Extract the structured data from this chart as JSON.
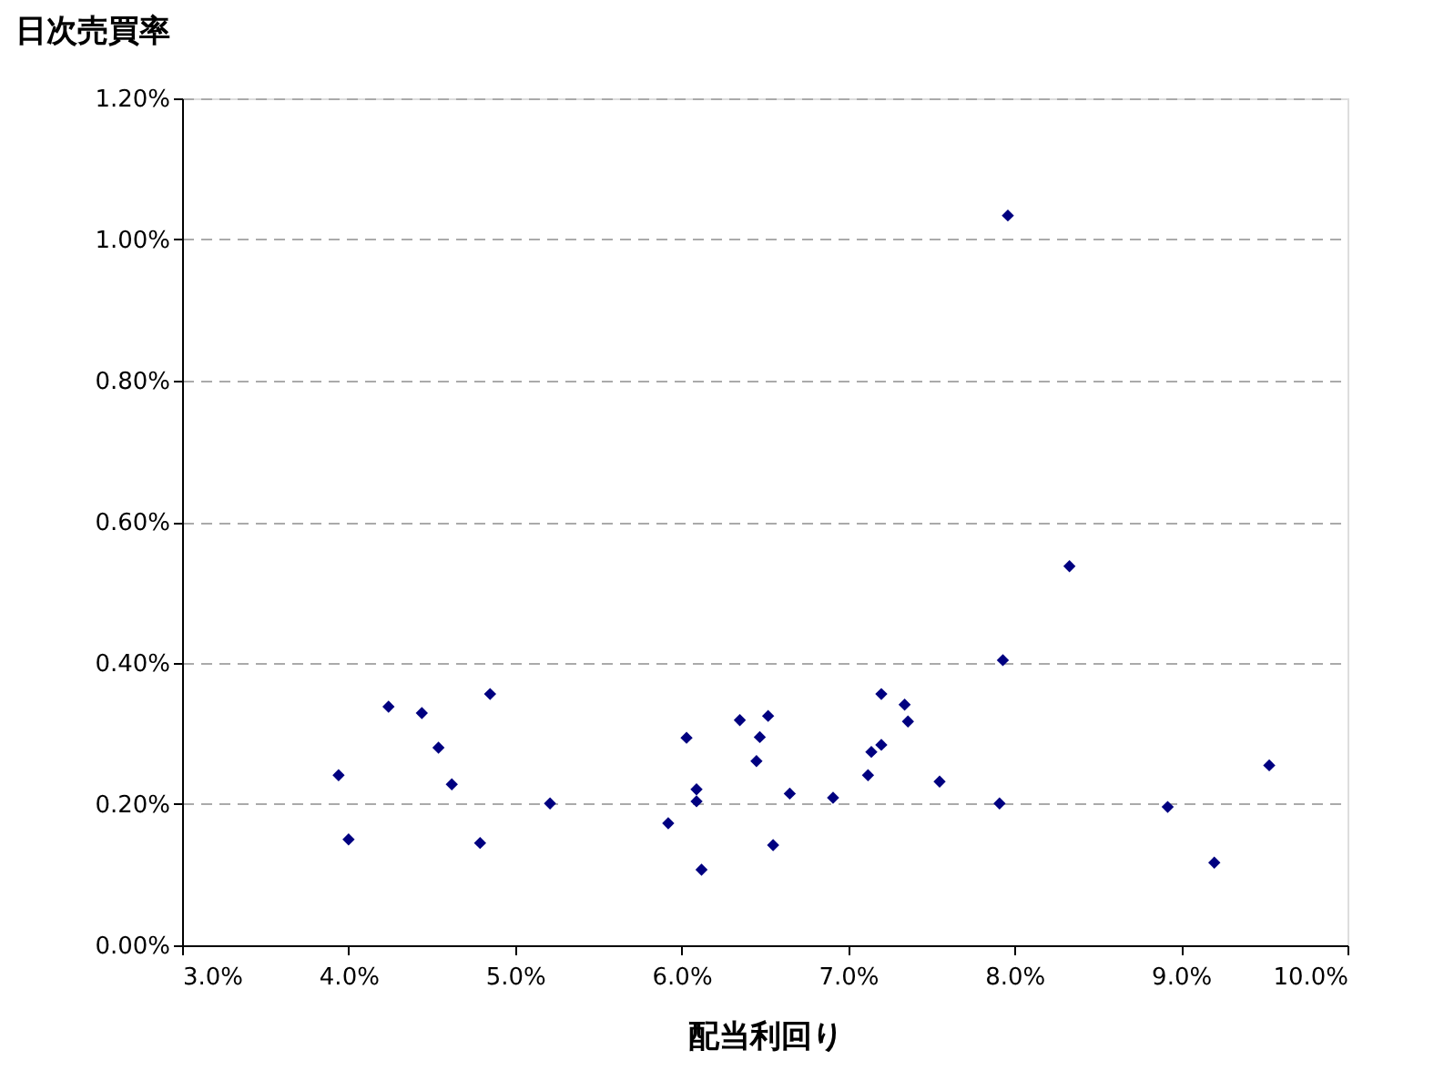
{
  "chart_data": {
    "type": "scatter",
    "xlabel": "配当利回り",
    "ylabel": "日次売買率",
    "marker": "diamond",
    "grid": "y",
    "line_style": "dashed",
    "x": [
      3.94,
      4.0,
      4.24,
      4.44,
      4.54,
      4.62,
      4.79,
      4.85,
      5.21,
      5.92,
      6.03,
      6.09,
      6.09,
      6.12,
      6.35,
      6.45,
      6.47,
      6.52,
      6.55,
      6.65,
      6.91,
      7.12,
      7.14,
      7.2,
      7.2,
      7.34,
      7.36,
      7.55,
      7.91,
      7.93,
      7.96,
      8.33,
      8.92,
      9.2,
      9.53
    ],
    "series": [
      {
        "color": "#000080",
        "values": [
          0.241,
          0.15,
          0.338,
          0.329,
          0.28,
          0.228,
          0.145,
          0.356,
          0.201,
          0.173,
          0.294,
          0.221,
          0.204,
          0.107,
          0.319,
          0.261,
          0.295,
          0.325,
          0.142,
          0.215,
          0.209,
          0.241,
          0.274,
          0.284,
          0.356,
          0.341,
          0.317,
          0.232,
          0.201,
          0.404,
          1.034,
          0.537,
          0.196,
          0.117,
          0.255
        ]
      }
    ],
    "xlim": [
      3,
      10
    ],
    "ylim": [
      0,
      1.2
    ],
    "xticks": [
      {
        "value": 3,
        "label": "3.0%"
      },
      {
        "value": 4,
        "label": "4.0%"
      },
      {
        "value": 5,
        "label": "5.0%"
      },
      {
        "value": 6,
        "label": "6.0%"
      },
      {
        "value": 7,
        "label": "7.0%"
      },
      {
        "value": 8,
        "label": "8.0%"
      },
      {
        "value": 9,
        "label": "9.0%"
      },
      {
        "value": 10,
        "label": "10.0%"
      }
    ],
    "yticks": [
      {
        "value": 0,
        "label": "0.00%"
      },
      {
        "value": 0.2,
        "label": "0.20%"
      },
      {
        "value": 0.4,
        "label": "0.40%"
      },
      {
        "value": 0.6,
        "label": "0.60%"
      },
      {
        "value": 0.8,
        "label": "0.80%"
      },
      {
        "value": 1.0,
        "label": "1.00%"
      },
      {
        "value": 1.2,
        "label": "1.20%"
      }
    ]
  }
}
